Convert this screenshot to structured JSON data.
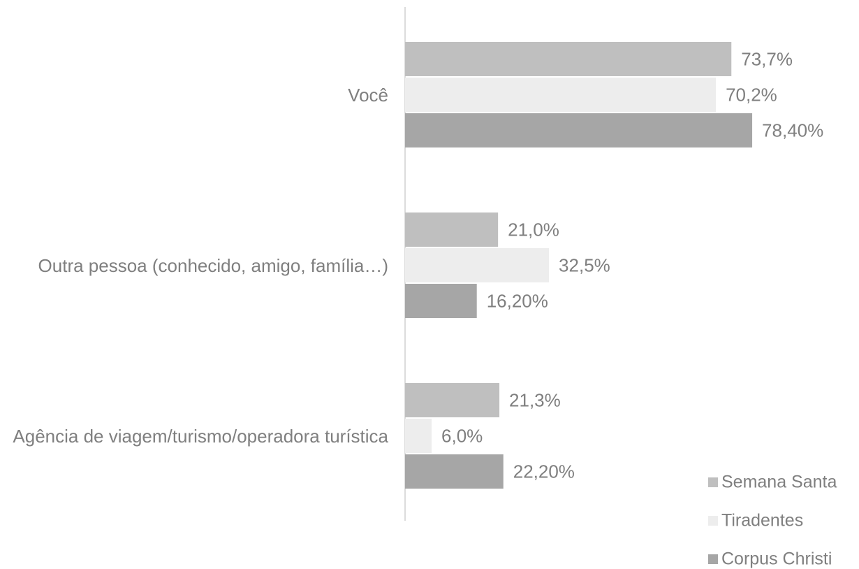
{
  "chart_data": {
    "type": "hbar",
    "categories": [
      "Você",
      "Outra pessoa (conhecido, amigo, família…)",
      "Agência de viagem/turismo/operadora turística"
    ],
    "series": [
      {
        "name": "Semana Santa",
        "color": "#bfbfbf",
        "values": [
          73.7,
          21.0,
          21.3
        ],
        "value_labels": [
          "73,7%",
          "21,0%",
          "21,3%"
        ]
      },
      {
        "name": "Tiradentes",
        "color": "#ededed",
        "values": [
          70.2,
          32.5,
          6.0
        ],
        "value_labels": [
          "70,2%",
          "32,5%",
          "6,0%"
        ]
      },
      {
        "name": "Corpus Christi",
        "color": "#a6a6a6",
        "values": [
          78.4,
          16.2,
          22.2
        ],
        "value_labels": [
          "78,40%",
          "16,20%",
          "22,20%"
        ]
      }
    ],
    "legend": "bottom-right"
  }
}
